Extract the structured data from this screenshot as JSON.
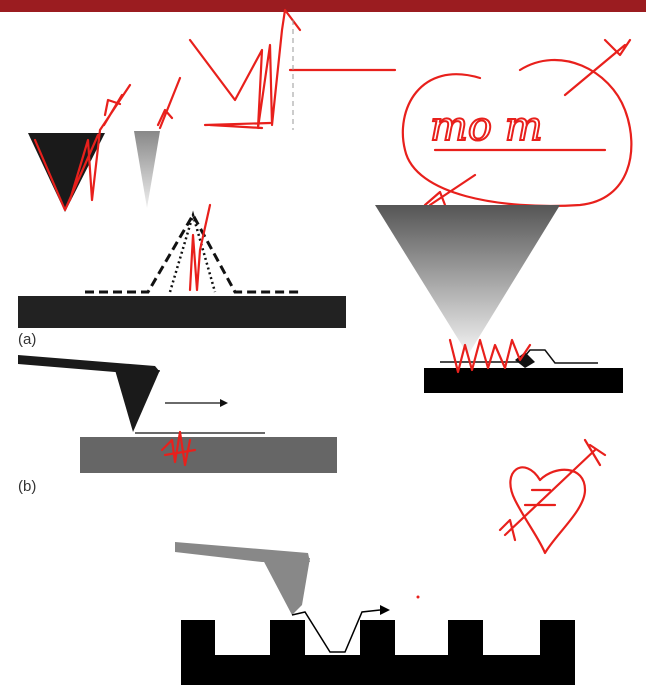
{
  "labels": {
    "a": "(a)",
    "b": "(b)"
  },
  "handwriting": "mo m"
}
